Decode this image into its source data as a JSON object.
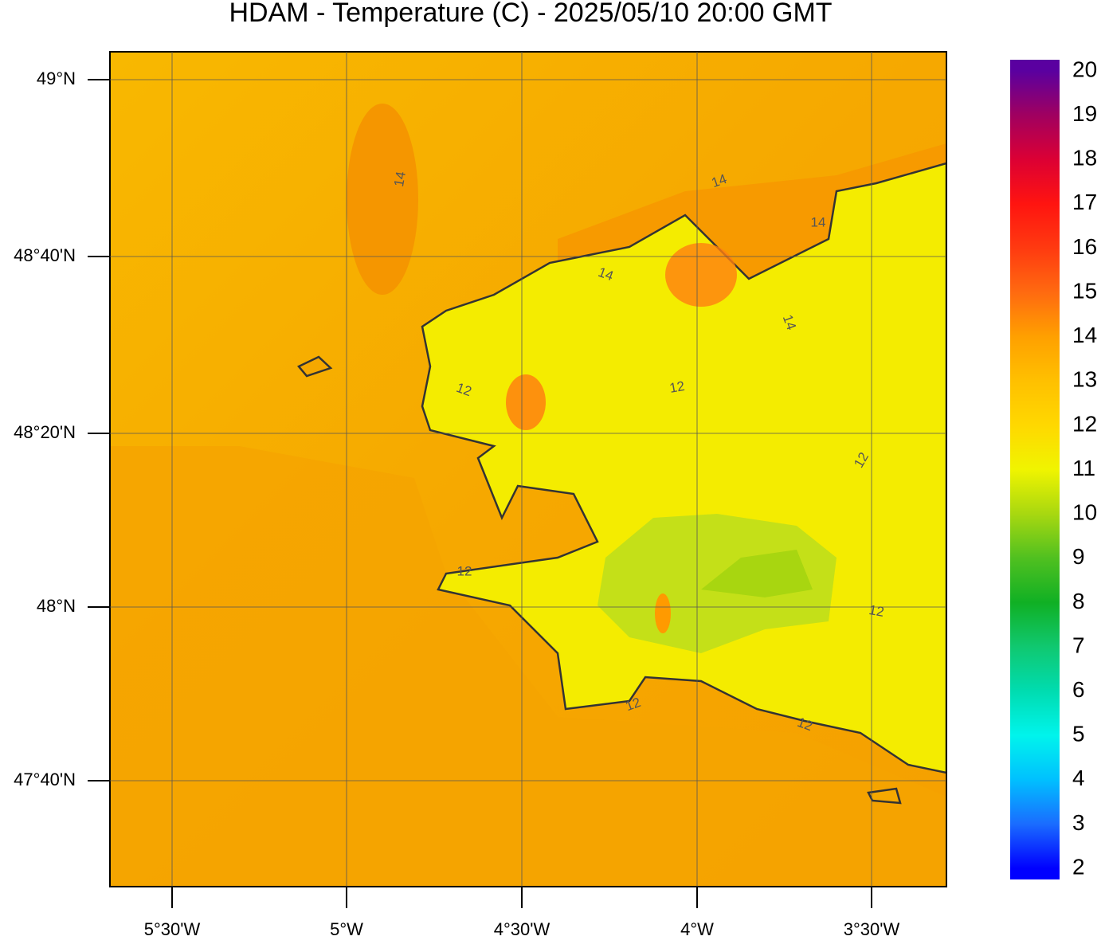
{
  "title": "HDAM - Temperature (C)  -  2025/05/10  20:00 GMT",
  "map": {
    "lat_labels": [
      "49°N",
      "48°40'N",
      "48°20'N",
      "48°N",
      "47°40'N"
    ],
    "lon_labels": [
      "5°30'W",
      "5°W",
      "4°30'W",
      "4°W",
      "3°30'W"
    ],
    "contour_labels": [
      "14",
      "14",
      "14",
      "14",
      "14",
      "12",
      "12",
      "12",
      "12",
      "12",
      "12",
      "12"
    ]
  },
  "colorbar": {
    "lim": [
      1.75,
      20.25
    ],
    "ticks": [
      2,
      3,
      4,
      5,
      6,
      7,
      8,
      9,
      10,
      11,
      12,
      13,
      14,
      15,
      16,
      17,
      18,
      19,
      20
    ],
    "colors": [
      "#0000ff",
      "#1a6cff",
      "#00c0ff",
      "#00f4ec",
      "#00dcb0",
      "#10c870",
      "#10b024",
      "#50c020",
      "#a8d810",
      "#f0f400",
      "#ffd800",
      "#ffc000",
      "#ffa000",
      "#ff6a10",
      "#ff3a10",
      "#ff1410",
      "#dc0034",
      "#a00060",
      "#5a00a0"
    ]
  }
}
